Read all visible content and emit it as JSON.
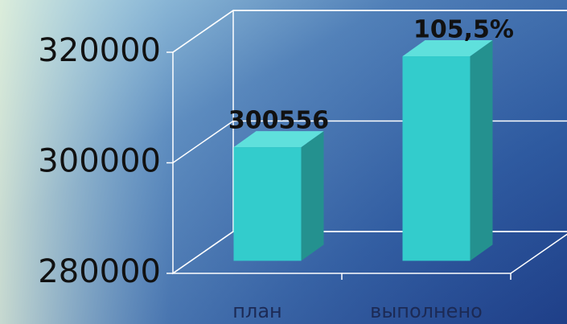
{
  "chart_data": {
    "type": "bar3d",
    "categories": [
      "план",
      "выполнено"
    ],
    "values": [
      300556,
      317000
    ],
    "value_labels": [
      "300556",
      null
    ],
    "annotations": [
      {
        "text": "105,5%",
        "category": 1
      }
    ],
    "color": "#33cccc",
    "ylim": [
      280000,
      320000
    ],
    "yticks": [
      280000,
      300000,
      320000
    ],
    "grid": true
  }
}
